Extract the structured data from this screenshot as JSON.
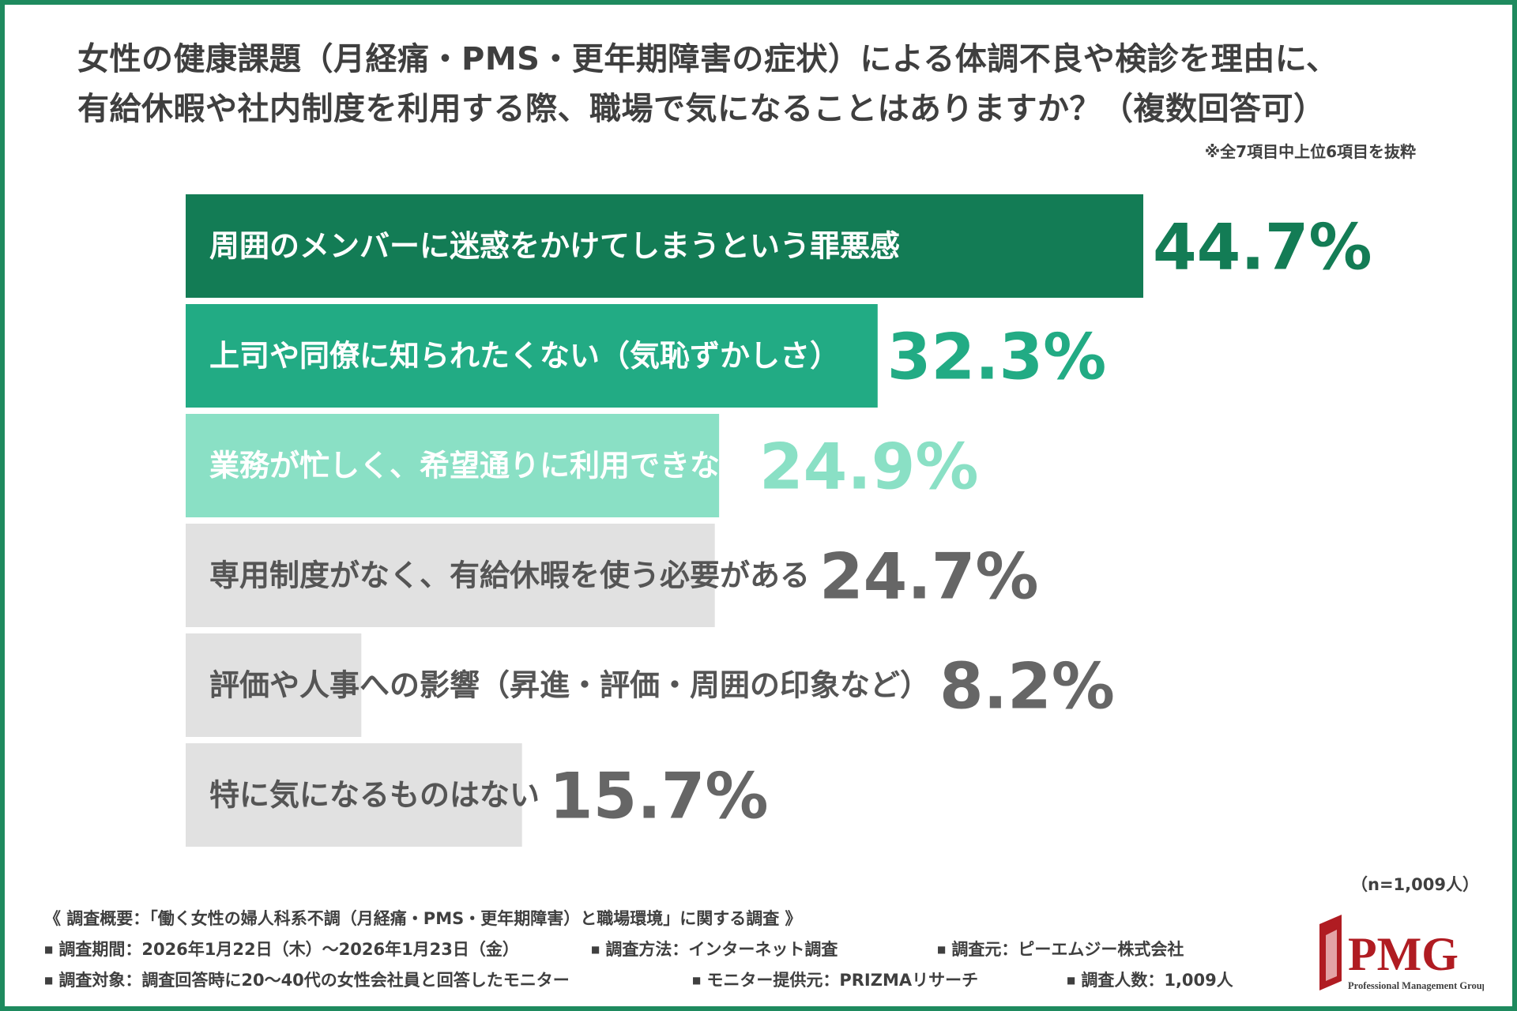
{
  "title_line1": "女性の健康課題（月経痛・PMS・更年期障害の症状）による体調不良や検診を理由に、",
  "title_line2": "有給休暇や社内制度を利用する際、職場で気になることはありますか？（複数回答可）",
  "note": "※全7項目中上位6項目を抜粋",
  "chart_data": {
    "type": "bar",
    "orientation": "horizontal",
    "categories": [
      "周囲のメンバーに迷惑をかけてしまうという罪悪感",
      "上司や同僚に知られたくない（気恥ずかしさ）",
      "業務が忙しく、希望通りに利用できない",
      "専用制度がなく、有給休暇を使う必要がある",
      "評価や人事への影響（昇進・評価・周囲の印象など）",
      "特に気になるものはない"
    ],
    "values": [
      44.7,
      32.3,
      24.9,
      24.7,
      8.2,
      15.7
    ],
    "value_labels": [
      "44.7%",
      "32.3%",
      "24.9%",
      "24.7%",
      "8.2%",
      "15.7%"
    ],
    "xlim": [
      0,
      44.7
    ],
    "grid": false,
    "legend": "none",
    "colors": {
      "bars": [
        "#137c55",
        "#22ab84",
        "#8ae0c5",
        "#e1e1e1",
        "#e1e1e1",
        "#e1e1e1"
      ],
      "values": [
        "#137c55",
        "#22ab84",
        "#8ae0c5",
        "#666666",
        "#666666",
        "#666666"
      ],
      "labels": [
        "#ffffff",
        "#ffffff",
        "#ffffff",
        "#555555",
        "#555555",
        "#555555"
      ]
    }
  },
  "sample_size": "（n=1,009人）",
  "survey": {
    "overview": "《 調査概要：「働く女性の婦人科系不調（月経痛・PMS・更年期障害）と職場環境」に関する調査 》",
    "period": "調査期間：2026年1月22日（木）～2026年1月23日（金）",
    "method": "調査方法：インターネット調査",
    "source": "調査元：ピーエムジー株式会社",
    "target": "調査対象：調査回答時に20～40代の女性会社員と回答したモニター",
    "provider": "モニター提供元：PRIZMAリサーチ",
    "count": "調査人数：1,009人"
  },
  "logo": {
    "name": "PMG",
    "tagline": "Professional Management Group",
    "color": "#b01c22"
  }
}
